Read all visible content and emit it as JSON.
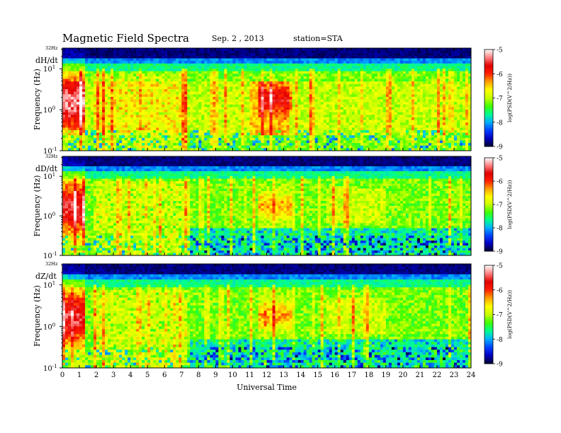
{
  "header": {
    "title": "Magnetic  Field  Spectra",
    "date": "Sep. 2  , 2013",
    "station": "station=STA"
  },
  "chart_data": [
    {
      "type": "heatmap",
      "panel_label": "dH/dt",
      "ylabel": "Frequency  (Hz)",
      "yscale": "log",
      "ylim": [
        0.1,
        32
      ],
      "yticks": [
        {
          "value": 32,
          "label": "32Hz"
        },
        {
          "value": 10,
          "base": "10",
          "exp": "1"
        },
        {
          "value": 1,
          "base": "10",
          "exp": "0"
        },
        {
          "value": 0.1,
          "base": "10",
          "exp": "-1"
        }
      ],
      "xlim": [
        0,
        24
      ],
      "colorbar": {
        "label": "log(PSD(V^2/Hz))",
        "range": [
          -9,
          -5
        ],
        "ticks": [
          "-5",
          "-6",
          "-7",
          "-8",
          "-9"
        ]
      }
    },
    {
      "type": "heatmap",
      "panel_label": "dD/dt",
      "ylabel": "Frequency  (Hz)",
      "yscale": "log",
      "ylim": [
        0.1,
        32
      ],
      "yticks": [
        {
          "value": 32,
          "label": "32Hz"
        },
        {
          "value": 10,
          "base": "10",
          "exp": "1"
        },
        {
          "value": 1,
          "base": "10",
          "exp": "0"
        },
        {
          "value": 0.1,
          "base": "10",
          "exp": "-1"
        }
      ],
      "xlim": [
        0,
        24
      ],
      "colorbar": {
        "label": "log(PSD(V^2/Hz))",
        "range": [
          -9,
          -5
        ],
        "ticks": [
          "-5",
          "-6",
          "-7",
          "-8",
          "-9"
        ]
      }
    },
    {
      "type": "heatmap",
      "panel_label": "dZ/dt",
      "ylabel": "Frequency  (Hz)",
      "yscale": "log",
      "ylim": [
        0.1,
        32
      ],
      "yticks": [
        {
          "value": 32,
          "label": "32Hz"
        },
        {
          "value": 10,
          "base": "10",
          "exp": "1"
        },
        {
          "value": 1,
          "base": "10",
          "exp": "0"
        },
        {
          "value": 0.1,
          "base": "10",
          "exp": "-1"
        }
      ],
      "xlim": [
        0,
        24
      ],
      "colorbar": {
        "label": "log(PSD(V^2/Hz))",
        "range": [
          -9,
          -5
        ],
        "ticks": [
          "-5",
          "-6",
          "-7",
          "-8",
          "-9"
        ]
      }
    }
  ],
  "xaxis": {
    "label": "Universal Time",
    "ticks": [
      "0",
      "1",
      "2",
      "3",
      "4",
      "5",
      "6",
      "7",
      "8",
      "9",
      "10",
      "11",
      "12",
      "13",
      "14",
      "15",
      "16",
      "17",
      "18",
      "19",
      "20",
      "21",
      "22",
      "23",
      "24"
    ]
  },
  "colors": {
    "scale": [
      "#000030",
      "#0000c0",
      "#0040ff",
      "#00b0ff",
      "#00ff90",
      "#40ff00",
      "#c8ff00",
      "#ffff00",
      "#ffa000",
      "#ff2000",
      "#e00000",
      "#ff8080",
      "#ffffff"
    ]
  }
}
